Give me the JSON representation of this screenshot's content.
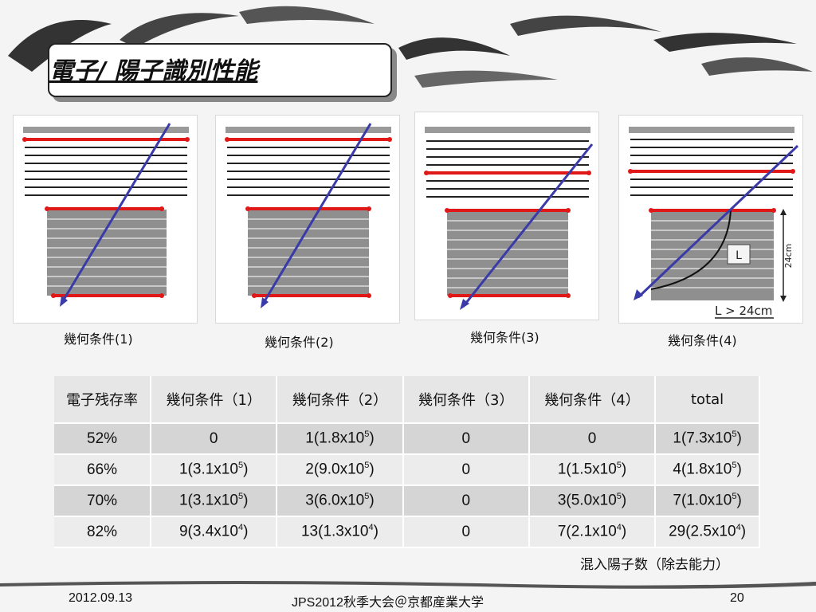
{
  "title": "電子/ 陽子識別性能",
  "panels": [
    {
      "caption": "幾何条件(1)"
    },
    {
      "caption": "幾何条件(2)"
    },
    {
      "caption": "幾何条件(3)"
    },
    {
      "caption": "幾何条件(4)"
    }
  ],
  "panel4_labels": {
    "box": "L",
    "dim": "24cm",
    "condition": "L > 24cm"
  },
  "table": {
    "headers": [
      "電子残存率",
      "幾何条件（1）",
      "幾何条件（2）",
      "幾何条件（3）",
      "幾何条件（4）",
      "total"
    ],
    "rows": [
      [
        {
          "n": "52%"
        },
        {
          "n": "0"
        },
        {
          "n": "1(1.8x10",
          "e": "5",
          "t": ")"
        },
        {
          "n": "0"
        },
        {
          "n": "0"
        },
        {
          "n": "1(7.3x10",
          "e": "5",
          "t": ")"
        }
      ],
      [
        {
          "n": "66%"
        },
        {
          "n": "1(3.1x10",
          "e": "5",
          "t": ")"
        },
        {
          "n": "2(9.0x10",
          "e": "5",
          "t": ")"
        },
        {
          "n": "0"
        },
        {
          "n": "1(1.5x10",
          "e": "5",
          "t": ")"
        },
        {
          "n": "4(1.8x10",
          "e": "5",
          "t": ")"
        }
      ],
      [
        {
          "n": "70%"
        },
        {
          "n": "1(3.1x10",
          "e": "5",
          "t": ")"
        },
        {
          "n": "3(6.0x10",
          "e": "5",
          "t": ")"
        },
        {
          "n": "0"
        },
        {
          "n": "3(5.0x10",
          "e": "5",
          "t": ")"
        },
        {
          "n": "7(1.0x10",
          "e": "5",
          "t": ")"
        }
      ],
      [
        {
          "n": "82%"
        },
        {
          "n": "9(3.4x10",
          "e": "4",
          "t": ")"
        },
        {
          "n": "13(1.3x10",
          "e": "4",
          "t": ")"
        },
        {
          "n": "0"
        },
        {
          "n": "7(2.1x10",
          "e": "4",
          "t": ")"
        },
        {
          "n": "29(2.5x10",
          "e": "4",
          "t": ")"
        }
      ]
    ]
  },
  "note": "混入陽子数（除去能力）",
  "footer": {
    "date": "2012.09.13",
    "event": "JPS2012秋季大会＠京都産業大学",
    "page": "20"
  },
  "colors": {
    "track": "#3a3aa8",
    "hit": "#e01818",
    "detector": "#8f8f8f"
  }
}
